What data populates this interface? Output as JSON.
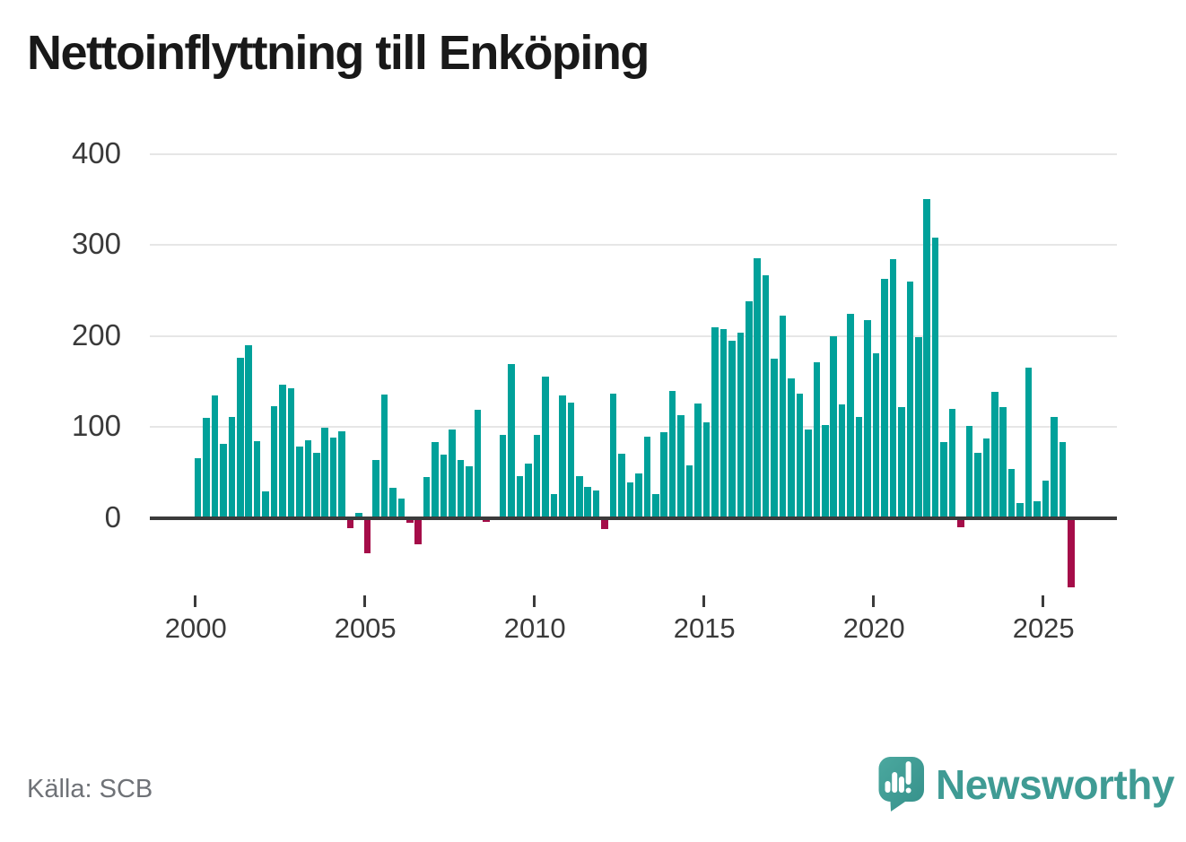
{
  "title": "Nettoinflyttning till Enköping",
  "source": "Källa: SCB",
  "branding": {
    "wordmark": "Newsworthy",
    "logo_icon": "newsworthy-speech-bubble-barchart-icon"
  },
  "colors": {
    "positive_bar": "#00a19a",
    "negative_bar": "#a50d49",
    "axis": "#3b3b3b",
    "grid": "#e6e6e6",
    "tick_label": "#3a3a3a",
    "title_text": "#191919",
    "source_text": "#6f7277",
    "brand_teal": "#3f9b94",
    "logo_teal_light": "#4ba89f",
    "logo_teal_dark": "#35908a",
    "logo_glyph": "#ffffff"
  },
  "chart_data": {
    "type": "bar",
    "title": "Nettoinflyttning till Enköping",
    "xlabel": "",
    "ylabel": "",
    "grid": "horizontal",
    "legend": "none",
    "y_ticks": [
      0,
      100,
      200,
      300,
      400
    ],
    "x_ticks": [
      2000,
      2005,
      2010,
      2015,
      2020,
      2025
    ],
    "ylim": [
      -100,
      400
    ],
    "x": [
      "2000Q1",
      "2000Q2",
      "2000Q3",
      "2000Q4",
      "2001Q1",
      "2001Q2",
      "2001Q3",
      "2001Q4",
      "2002Q1",
      "2002Q2",
      "2002Q3",
      "2002Q4",
      "2003Q1",
      "2003Q2",
      "2003Q3",
      "2003Q4",
      "2004Q1",
      "2004Q2",
      "2004Q3",
      "2004Q4",
      "2005Q1",
      "2005Q2",
      "2005Q3",
      "2005Q4",
      "2006Q1",
      "2006Q2",
      "2006Q3",
      "2006Q4",
      "2007Q1",
      "2007Q2",
      "2007Q3",
      "2007Q4",
      "2008Q1",
      "2008Q2",
      "2008Q3",
      "2008Q4",
      "2009Q1",
      "2009Q2",
      "2009Q3",
      "2009Q4",
      "2010Q1",
      "2010Q2",
      "2010Q3",
      "2010Q4",
      "2011Q1",
      "2011Q2",
      "2011Q3",
      "2011Q4",
      "2012Q1",
      "2012Q2",
      "2012Q3",
      "2012Q4",
      "2013Q1",
      "2013Q2",
      "2013Q3",
      "2013Q4",
      "2014Q1",
      "2014Q2",
      "2014Q3",
      "2014Q4",
      "2015Q1",
      "2015Q2",
      "2015Q3",
      "2015Q4",
      "2016Q1",
      "2016Q2",
      "2016Q3",
      "2016Q4",
      "2017Q1",
      "2017Q2",
      "2017Q3",
      "2017Q4",
      "2018Q1",
      "2018Q2",
      "2018Q3",
      "2018Q4",
      "2019Q1",
      "2019Q2",
      "2019Q3",
      "2019Q4",
      "2020Q1",
      "2020Q2",
      "2020Q3",
      "2020Q4",
      "2021Q1",
      "2021Q2",
      "2021Q3",
      "2021Q4",
      "2022Q1",
      "2022Q2",
      "2022Q3",
      "2022Q4",
      "2023Q1",
      "2023Q2",
      "2023Q3",
      "2023Q4",
      "2024Q1",
      "2024Q2",
      "2024Q3",
      "2024Q4",
      "2025Q1",
      "2025Q2",
      "2025Q3",
      "2025Q4"
    ],
    "values": [
      66,
      110,
      135,
      81,
      111,
      176,
      190,
      84,
      29,
      123,
      146,
      142,
      78,
      85,
      72,
      99,
      88,
      95,
      -11,
      5,
      -39,
      64,
      136,
      33,
      21,
      -5,
      -29,
      45,
      83,
      70,
      97,
      64,
      57,
      119,
      -4,
      2,
      91,
      169,
      46,
      60,
      91,
      155,
      26,
      135,
      127,
      46,
      34,
      30,
      -12,
      137,
      71,
      39,
      49,
      89,
      26,
      94,
      140,
      113,
      58,
      126,
      105,
      210,
      208,
      195,
      204,
      238,
      285,
      267,
      175,
      222,
      153,
      137,
      97,
      171,
      102,
      200,
      125,
      224,
      111,
      217,
      181,
      263,
      284,
      122,
      260,
      199,
      350,
      308,
      83,
      120,
      -10,
      101,
      72,
      87,
      139,
      122,
      54,
      16,
      165,
      18,
      41,
      111,
      83,
      -76
    ]
  }
}
